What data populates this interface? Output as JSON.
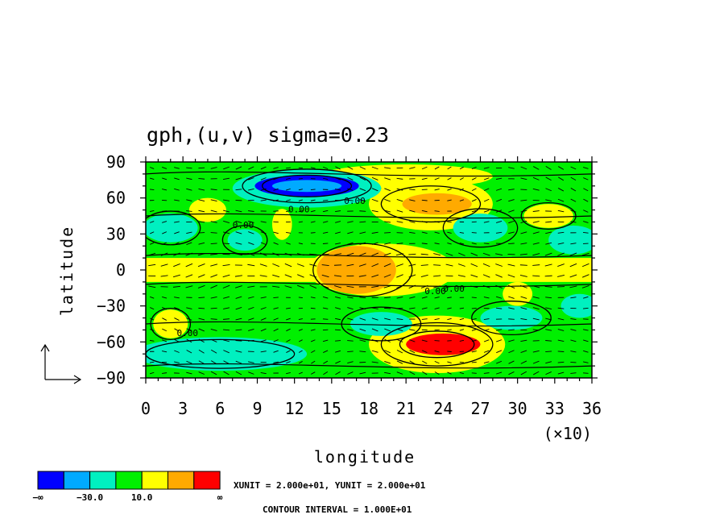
{
  "chart_data": {
    "type": "heatmap",
    "title": "gph,(u,v) sigma=0.23",
    "xlabel": "longitude",
    "ylabel": "latitude",
    "x_tick_labels": [
      "0",
      "3",
      "6",
      "9",
      "12",
      "15",
      "18",
      "21",
      "24",
      "27",
      "30",
      "33",
      "36"
    ],
    "x_scale_note": "(×10)",
    "y_tick_labels": [
      "90",
      "60",
      "30",
      "0",
      "−30",
      "−60",
      "−90"
    ],
    "xlim": [
      0,
      360
    ],
    "ylim": [
      -90,
      90
    ],
    "grid": false,
    "contour_label": "0.00",
    "colorbar": {
      "colors": [
        "#0000ff",
        "#00aaff",
        "#00f0c0",
        "#00f000",
        "#ffff00",
        "#ffaa00",
        "#ff0000"
      ],
      "tick_labels": [
        "−∞",
        "−30.0",
        "10.0",
        "∞"
      ]
    },
    "vector_legend": "XUNIT = 2.000e+01, YUNIT = 2.000e+01",
    "contour_interval_text": "CONTOUR INTERVAL = 1.000E+01",
    "field_features": [
      {
        "lon": 130,
        "lat": 70,
        "level": 0,
        "rx": 42,
        "ry": 9
      },
      {
        "lon": 130,
        "lat": 70,
        "level": 1,
        "rx": 28,
        "ry": 5
      },
      {
        "lon": 240,
        "lat": -62,
        "level": 6,
        "rx": 30,
        "ry": 9
      },
      {
        "lon": 235,
        "lat": 55,
        "level": 5,
        "rx": 28,
        "ry": 9
      },
      {
        "lon": 170,
        "lat": 0,
        "level": 5,
        "rx": 32,
        "ry": 20
      },
      {
        "lon": 80,
        "lat": 25,
        "level": 2,
        "rx": 14,
        "ry": 9
      },
      {
        "lon": 295,
        "lat": -40,
        "level": 2,
        "rx": 25,
        "ry": 10
      },
      {
        "lon": 190,
        "lat": -45,
        "level": 2,
        "rx": 25,
        "ry": 10
      },
      {
        "lon": 270,
        "lat": 35,
        "level": 2,
        "rx": 22,
        "ry": 12
      }
    ]
  }
}
